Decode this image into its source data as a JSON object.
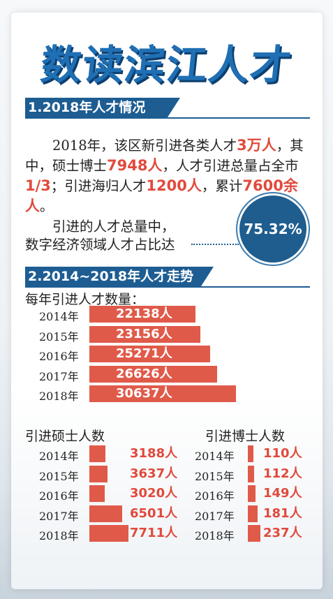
{
  "title": "数读滨江人才",
  "section1": {
    "heading": "1.2018年人才情况",
    "text_parts": [
      {
        "t": "2018年，该区新引进各类人才",
        "hl": false
      },
      {
        "t": "3万人",
        "hl": true
      },
      {
        "t": "，其中，硕士博士",
        "hl": false
      },
      {
        "t": "7948人",
        "hl": true
      },
      {
        "t": "，人才引进总量占全市",
        "hl": false
      },
      {
        "t": "1/3",
        "hl": true
      },
      {
        "t": "；引进海归人才",
        "hl": false
      },
      {
        "t": "1200人",
        "hl": true
      },
      {
        "t": "，累计",
        "hl": false
      },
      {
        "t": "7600余人",
        "hl": true
      },
      {
        "t": "。",
        "hl": false
      }
    ],
    "line2a": "引进的人才总量中，",
    "line2b": "数字经济领域人才占比达",
    "badge": "75.32%"
  },
  "section2": {
    "heading": "2.2014~2018年人才走势",
    "subheading": "每年引进人才数量："
  },
  "colors": {
    "bar": "#e05a4a",
    "accent": "#1d5d92",
    "highlight": "#e04a3c"
  },
  "chart_data": [
    {
      "type": "bar",
      "orientation": "horizontal",
      "title": "每年引进人才数量：",
      "categories": [
        "2014年",
        "2015年",
        "2016年",
        "2017年",
        "2018年"
      ],
      "values": [
        22138,
        23156,
        25271,
        26626,
        30637
      ],
      "value_labels": [
        "22138人",
        "23156人",
        "25271人",
        "26626人",
        "30637人"
      ],
      "label_position": "inside"
    },
    {
      "type": "bar",
      "orientation": "horizontal",
      "title": "引进硕士人数",
      "categories": [
        "2014年",
        "2015年",
        "2016年",
        "2017年",
        "2018年"
      ],
      "values": [
        3188,
        3637,
        3020,
        6501,
        7711
      ],
      "value_labels": [
        "3188人",
        "3637人",
        "3020人",
        "6501人",
        "7711人"
      ],
      "label_position": "outside"
    },
    {
      "type": "bar",
      "orientation": "horizontal",
      "title": "引进博士人数",
      "categories": [
        "2014年",
        "2015年",
        "2016年",
        "2017年",
        "2018年"
      ],
      "values": [
        110,
        112,
        149,
        181,
        237
      ],
      "value_labels": [
        "110人",
        "112人",
        "149人",
        "181人",
        "237人"
      ],
      "label_position": "outside"
    }
  ]
}
